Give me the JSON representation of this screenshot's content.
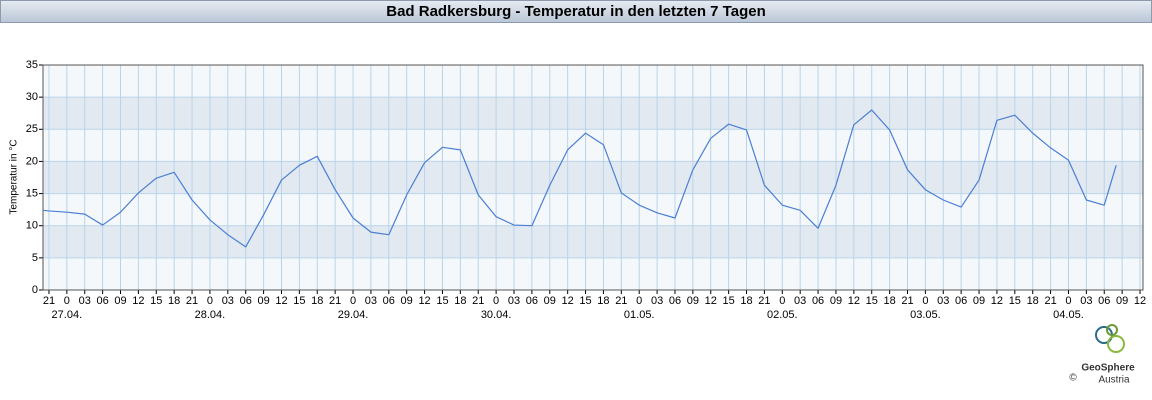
{
  "chart_data": {
    "type": "line",
    "title": "Bad Radkersburg - Temperatur in den letzten 7 Tagen",
    "y_label": "Temperatur in °C",
    "x": [
      -4,
      -3,
      0,
      3,
      6,
      9,
      12,
      15,
      18,
      21,
      24,
      27,
      30,
      33,
      36,
      39,
      42,
      45,
      48,
      51,
      54,
      57,
      60,
      63,
      66,
      69,
      72,
      75,
      78,
      81,
      84,
      87,
      90,
      93,
      96,
      99,
      102,
      105,
      108,
      111,
      114,
      117,
      120,
      123,
      126,
      129,
      132,
      135,
      138,
      141,
      144,
      147,
      150,
      153,
      156,
      159,
      162,
      165,
      168,
      171,
      174,
      176
    ],
    "values": [
      12.4,
      12.3,
      12.1,
      11.8,
      10.1,
      12.1,
      15.1,
      17.4,
      18.3,
      14.0,
      10.9,
      8.6,
      6.7,
      11.7,
      17.1,
      19.4,
      20.8,
      15.6,
      11.2,
      9.0,
      8.6,
      14.8,
      19.8,
      22.2,
      21.8,
      14.8,
      11.4,
      10.1,
      10.0,
      16.3,
      21.8,
      24.4,
      22.6,
      15.1,
      13.2,
      12.0,
      11.2,
      18.7,
      23.6,
      25.8,
      24.9,
      16.3,
      13.2,
      12.4,
      9.6,
      16.3,
      25.7,
      28.0,
      24.9,
      18.7,
      15.6,
      14.0,
      12.9,
      17.1,
      26.4,
      27.2,
      24.4,
      22.1,
      20.2,
      14.0,
      13.2,
      19.4
    ],
    "color": "#4a7fd4",
    "xlim": [
      -4,
      180.5
    ],
    "xticks": [
      {
        "value": -3,
        "label": "21"
      },
      0,
      {
        "value": 3,
        "label": "03"
      },
      {
        "value": 6,
        "label": "06"
      },
      {
        "value": 9,
        "label": "09"
      },
      {
        "value": 12,
        "label": "12"
      },
      {
        "value": 15,
        "label": "15"
      },
      {
        "value": 18,
        "label": "18"
      },
      {
        "value": 21,
        "label": "21"
      },
      {
        "value": 24,
        "label": "0"
      },
      {
        "value": 27,
        "label": "03"
      },
      {
        "value": 30,
        "label": "06"
      },
      {
        "value": 33,
        "label": "09"
      },
      {
        "value": 36,
        "label": "12"
      },
      {
        "value": 39,
        "label": "15"
      },
      {
        "value": 42,
        "label": "18"
      },
      {
        "value": 45,
        "label": "21"
      },
      {
        "value": 48,
        "label": "0"
      },
      {
        "value": 51,
        "label": "03"
      },
      {
        "value": 54,
        "label": "06"
      },
      {
        "value": 57,
        "label": "09"
      },
      {
        "value": 60,
        "label": "12"
      },
      {
        "value": 63,
        "label": "15"
      },
      {
        "value": 66,
        "label": "18"
      },
      {
        "value": 69,
        "label": "21"
      },
      {
        "value": 72,
        "label": "0"
      },
      {
        "value": 75,
        "label": "03"
      },
      {
        "value": 78,
        "label": "06"
      },
      {
        "value": 81,
        "label": "09"
      },
      {
        "value": 84,
        "label": "12"
      },
      {
        "value": 87,
        "label": "15"
      },
      {
        "value": 90,
        "label": "18"
      },
      {
        "value": 93,
        "label": "21"
      },
      {
        "value": 96,
        "label": "0"
      },
      {
        "value": 99,
        "label": "03"
      },
      {
        "value": 102,
        "label": "06"
      },
      {
        "value": 105,
        "label": "09"
      },
      {
        "value": 108,
        "label": "12"
      },
      {
        "value": 111,
        "label": "15"
      },
      {
        "value": 114,
        "label": "18"
      },
      {
        "value": 117,
        "label": "21"
      },
      {
        "value": 120,
        "label": "0"
      },
      {
        "value": 123,
        "label": "03"
      },
      {
        "value": 126,
        "label": "06"
      },
      {
        "value": 129,
        "label": "09"
      },
      {
        "value": 132,
        "label": "12"
      },
      {
        "value": 135,
        "label": "15"
      },
      {
        "value": 138,
        "label": "18"
      },
      {
        "value": 141,
        "label": "21"
      },
      {
        "value": 144,
        "label": "0"
      },
      {
        "value": 147,
        "label": "03"
      },
      {
        "value": 150,
        "label": "06"
      },
      {
        "value": 153,
        "label": "09"
      },
      {
        "value": 156,
        "label": "12"
      },
      {
        "value": 159,
        "label": "15"
      },
      {
        "value": 162,
        "label": "18"
      },
      {
        "value": 165,
        "label": "21"
      },
      {
        "value": 168,
        "label": "0"
      },
      {
        "value": 171,
        "label": "03"
      },
      {
        "value": 174,
        "label": "06"
      },
      {
        "value": 177,
        "label": "09"
      },
      {
        "value": 180,
        "label": "12"
      }
    ],
    "date_labels": [
      {
        "value": 0,
        "label": "27.04."
      },
      {
        "value": 24,
        "label": "28.04."
      },
      {
        "value": 48,
        "label": "29.04."
      },
      {
        "value": 72,
        "label": "30.04."
      },
      {
        "value": 96,
        "label": "01.05."
      },
      {
        "value": 120,
        "label": "02.05."
      },
      {
        "value": 144,
        "label": "03.05."
      },
      {
        "value": 168,
        "label": "04.05."
      }
    ],
    "ylim": [
      0,
      35
    ],
    "yticks": [
      0,
      5,
      10,
      15,
      20,
      25,
      30,
      35
    ],
    "grid": true
  },
  "logo": {
    "name": "GeoSphere",
    "sub": "Austria",
    "copyright": "©"
  }
}
